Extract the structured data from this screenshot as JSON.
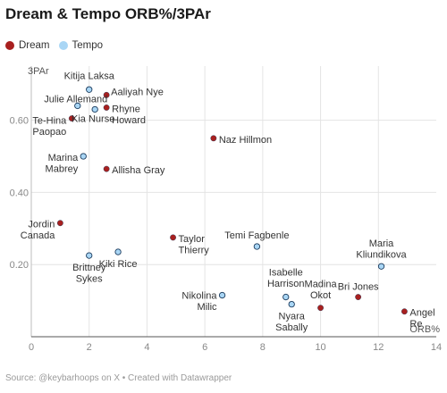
{
  "title": "Dream & Tempo ORB%/3PAr",
  "source": "Source: @keybarhoops on X • Created with Datawrapper",
  "legend": [
    {
      "name": "Dream",
      "color": "#a8201f"
    },
    {
      "name": "Tempo",
      "color": "#a9d6f5"
    }
  ],
  "chart_data": {
    "type": "scatter",
    "title": "Dream & Tempo ORB%/3PAr",
    "xlabel": "ORB%",
    "ylabel": "3PAr",
    "xlim": [
      0,
      14
    ],
    "ylim": [
      0,
      0.75
    ],
    "xticks": [
      0,
      2,
      4,
      6,
      8,
      10,
      12,
      14
    ],
    "yticks": [
      0.2,
      0.4,
      0.6
    ],
    "ytick_labels": [
      "0.20",
      "0.40",
      "0.60"
    ],
    "grid": true,
    "legend_position": "top-left",
    "series": [
      {
        "name": "Dream",
        "color": "#a8201f",
        "points": [
          {
            "label": [
              "Aaliyah Nye"
            ],
            "x": 2.6,
            "y": 0.67
          },
          {
            "label": [
              "Rhyne",
              "Howard"
            ],
            "x": 2.6,
            "y": 0.635
          },
          {
            "label": [
              "Te-Hina",
              "Paopao"
            ],
            "x": 1.4,
            "y": 0.605
          },
          {
            "label": [
              "Naz Hillmon"
            ],
            "x": 6.3,
            "y": 0.55
          },
          {
            "label": [
              "Allisha Gray"
            ],
            "x": 2.6,
            "y": 0.465
          },
          {
            "label": [
              "Jordin",
              "Canada"
            ],
            "x": 1.0,
            "y": 0.315
          },
          {
            "label": [
              "Taylor",
              "Thierry"
            ],
            "x": 4.9,
            "y": 0.275
          },
          {
            "label": [
              "Madina",
              "Okot"
            ],
            "x": 10.0,
            "y": 0.08
          },
          {
            "label": [
              "Bri Jones"
            ],
            "x": 11.3,
            "y": 0.11
          },
          {
            "label": [
              "Angel",
              "Re"
            ],
            "x": 12.9,
            "y": 0.07
          }
        ]
      },
      {
        "name": "Tempo",
        "color": "#a9d6f5",
        "points": [
          {
            "label": [
              "Kitija Laksa"
            ],
            "x": 2.0,
            "y": 0.685
          },
          {
            "label": [
              "Julie Allemand"
            ],
            "x": 1.6,
            "y": 0.64
          },
          {
            "label": [
              "Kia Nurse"
            ],
            "x": 2.2,
            "y": 0.63
          },
          {
            "label": [
              "Marina",
              "Mabrey"
            ],
            "x": 1.8,
            "y": 0.5
          },
          {
            "label": [
              "Brittney",
              "Sykes"
            ],
            "x": 2.0,
            "y": 0.225
          },
          {
            "label": [
              "Kiki Rice"
            ],
            "x": 3.0,
            "y": 0.235
          },
          {
            "label": [
              "Temi Fagbenle"
            ],
            "x": 7.8,
            "y": 0.25
          },
          {
            "label": [
              "Maria",
              "Kliundikova"
            ],
            "x": 12.1,
            "y": 0.195
          },
          {
            "label": [
              "Nikolina",
              "Milic"
            ],
            "x": 6.6,
            "y": 0.115
          },
          {
            "label": [
              "Isabelle",
              "Harrison"
            ],
            "x": 8.8,
            "y": 0.11
          },
          {
            "label": [
              "Nyara",
              "Sabally"
            ],
            "x": 9.0,
            "y": 0.09
          }
        ]
      }
    ]
  }
}
